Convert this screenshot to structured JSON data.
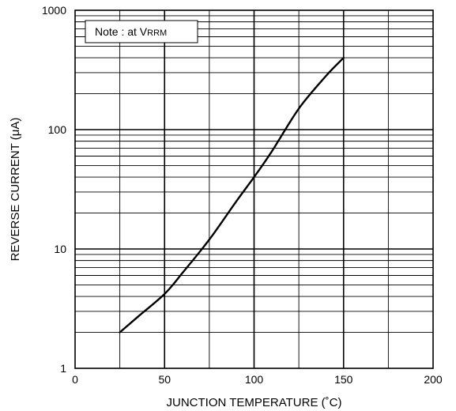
{
  "chart_data": {
    "type": "line",
    "title": "",
    "xlabel": "JUNCTION TEMPERATURE (˚C)",
    "ylabel": "REVERSE CURRENT (μA)",
    "xlim": [
      0,
      200
    ],
    "ylim": [
      1,
      1000
    ],
    "yscale": "log",
    "x_ticks": [
      "0",
      "50",
      "100",
      "150",
      "200"
    ],
    "y_ticks": [
      "1",
      "10",
      "100",
      "1000"
    ],
    "grid": true,
    "annotation": {
      "prefix": "Note : at V",
      "subscript": "RRM"
    },
    "series": [
      {
        "x": [
          25,
          35,
          50,
          60,
          75,
          90,
          100,
          110,
          125,
          140,
          150
        ],
        "y": [
          2,
          2.7,
          4.2,
          6.3,
          12,
          25,
          40,
          66,
          150,
          280,
          400
        ]
      }
    ],
    "colors": {
      "line": "#000000",
      "grid": "#000000"
    }
  }
}
